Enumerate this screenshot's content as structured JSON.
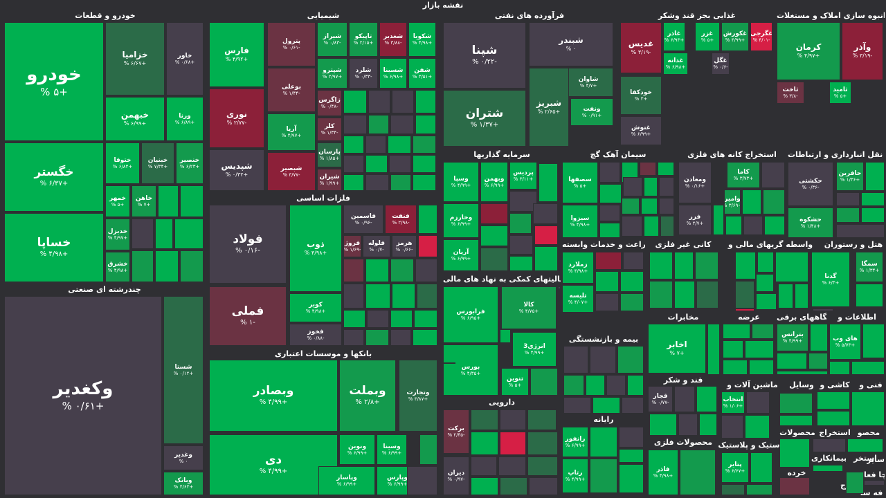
{
  "title": "نقشه بازار",
  "colors": {
    "background": "#2f2f33",
    "strong_green": "#00b050",
    "green": "#139a4d",
    "light_green": "#2b6b48",
    "neutral": "#463f4c",
    "light_red": "#6b3343",
    "red": "#8c2039",
    "strong_red": "#d61f45"
  },
  "sectors": [
    "خودرو و قطعات",
    "شیمیایی",
    "فرآورده های نفتی",
    "غذایی بجز قند وشکر",
    "انبوه سازی املاک و مستغلات",
    "چندرشته ای صنعتی",
    "فلزات اساسی",
    "بانکها و موسسات اعتباری",
    "سرمایه گذاریها",
    "سیمان آهک گچ",
    "استخراج کانه های فلزی",
    "حمل و نقل انبارداری و ارتباطات",
    "زراعت و خدمات وابسته",
    "کانی غیر فلزی",
    "واسطه گریهای مالی و",
    "هتل و رستوران",
    "فعالیتهای کمکی به نهاد های مالی",
    "مخابرات",
    "عرضه",
    "دستگاههای برقی",
    "اطلاعات و",
    "بیمه و بازنشستگی",
    "قند و شکر",
    "ماشین آلات و",
    "وسایل",
    "کاشی و",
    "فنی و",
    "دارویی",
    "رایانه",
    "محصولات فلزی",
    "لاستیک و پلاستیک",
    "محصولات",
    "استخراج",
    "محصو",
    "بیمانکاری",
    "استخر",
    "سایر",
    "چا فعا",
    "منسوج",
    "خرده",
    "فه سا"
  ],
  "tiles": [
    {
      "name": "خودرو",
      "change": "+۵ %"
    },
    {
      "name": "خگستر",
      "change": "+۶/۳۷ %"
    },
    {
      "name": "خساپا",
      "change": "+۴/۹۸ %"
    },
    {
      "name": "خزامیا",
      "change": "+۶/۶۷ %"
    },
    {
      "name": "خاور",
      "change": "+۰/۶۸ %"
    },
    {
      "name": "خبهمن",
      "change": "+۶/۹۹ %"
    },
    {
      "name": "ورنا",
      "change": "+۶/۸۹ %"
    },
    {
      "name": "ختوقا",
      "change": "+۶/۸۴ %"
    },
    {
      "name": "خبنیان",
      "change": "+۷/۳۴ %"
    },
    {
      "name": "خنصیر",
      "change": "+۶/۲۳ %"
    },
    {
      "name": "خمهر",
      "change": "+۵ %"
    },
    {
      "name": "خاهن",
      "change": "+۷ %"
    },
    {
      "name": "خدیزل",
      "change": "+۴/۹۷ %"
    },
    {
      "name": "خشرق",
      "change": "+۴/۹۸ %"
    },
    {
      "name": "وکغدیر",
      "change": "+۰/۶۱ %"
    },
    {
      "name": "شستا",
      "change": "+۰/۱۲ %"
    },
    {
      "name": "وغدیر",
      "change": "۰ %"
    },
    {
      "name": "وبانک",
      "change": "+۴/۶۳ %"
    },
    {
      "name": "فارس",
      "change": "+۴/۹۲ %"
    },
    {
      "name": "نوری",
      "change": "-۲/۷۷ %"
    },
    {
      "name": "شپدیس",
      "change": "+۰/۳۲ %"
    },
    {
      "name": "پترول",
      "change": "-۰/۶۱ %"
    },
    {
      "name": "شیراز",
      "change": "-۰/۸۳ %"
    },
    {
      "name": "تاپیکو",
      "change": "+۲/۱۵ %"
    },
    {
      "name": "شغدیر",
      "change": "-۳/۸۸ %"
    },
    {
      "name": "شکویا",
      "change": "+۴/۹۸ %"
    },
    {
      "name": "بوعلی",
      "change": "-۱/۴۴ %"
    },
    {
      "name": "شپترو",
      "change": "+۲/۹۷ %"
    },
    {
      "name": "شلرد",
      "change": "-۰/۳۳ %"
    },
    {
      "name": "شسینا",
      "change": "+۶/۹۸ %"
    },
    {
      "name": "شفن",
      "change": "+۳/۵۱ %"
    },
    {
      "name": "زاگرس",
      "change": "-۰/۴۸ %"
    },
    {
      "name": "آریا",
      "change": "+۴/۹۷ %"
    },
    {
      "name": "کلر",
      "change": "-۱/۳۴ %"
    },
    {
      "name": "شبصیر",
      "change": "-۳/۷۷ %"
    },
    {
      "name": "پارسان",
      "change": "+۱/۸۵ %"
    },
    {
      "name": "شیران",
      "change": "+۱/۹۹ %"
    },
    {
      "name": "فولاد",
      "change": "-۰/۱۶ %"
    },
    {
      "name": "فملی",
      "change": "-۱ %"
    },
    {
      "name": "ذوب",
      "change": "+۴/۹۸ %"
    },
    {
      "name": "فاسمین",
      "change": "-۰/۹۶ %"
    },
    {
      "name": "فنفت",
      "change": "-۲/۹۸ %"
    },
    {
      "name": "فروژ",
      "change": "-۱/۶۹ %"
    },
    {
      "name": "فلوله",
      "change": "-۰/۷ %"
    },
    {
      "name": "هرمز",
      "change": "-۰/۶۶ %"
    },
    {
      "name": "کویر",
      "change": "+۴/۹۸ %"
    },
    {
      "name": "فخوز",
      "change": "-۰/۸۸ %"
    },
    {
      "name": "وبصادر",
      "change": "+۴/۹۹ %"
    },
    {
      "name": "وبملت",
      "change": "+۲/۸ %"
    },
    {
      "name": "وتجارت",
      "change": "+۳/۸۷ %"
    },
    {
      "name": "دی",
      "change": "+۴/۹۹ %"
    },
    {
      "name": "ونوین",
      "change": "+۶/۹۹ %"
    },
    {
      "name": "وسینا",
      "change": "+۶/۹۹ %"
    },
    {
      "name": "وپاسار",
      "change": "+۶/۹۹ %"
    },
    {
      "name": "وپارس",
      "change": "+۶/۹۹ %"
    },
    {
      "name": "شپنا",
      "change": "-۰/۲۲ %"
    },
    {
      "name": "شبندر",
      "change": "۰ %"
    },
    {
      "name": "شاوان",
      "change": "+۴/۷ %"
    },
    {
      "name": "شتران",
      "change": "+۱/۳۷ %"
    },
    {
      "name": "شبریز",
      "change": "+۲/۶۵ %"
    },
    {
      "name": "ونفت",
      "change": "+۰/۹۱ %"
    },
    {
      "name": "غدیس",
      "change": "-۳/۱۹ %"
    },
    {
      "name": "غاذر",
      "change": "+۶/۹۳ %"
    },
    {
      "name": "غزر",
      "change": "+۵ %"
    },
    {
      "name": "غکورش",
      "change": "+۴/۹۹ %"
    },
    {
      "name": "غگرجی",
      "change": "-۴/۰۱ %"
    },
    {
      "name": "غدانه",
      "change": "+۶/۹۸ %"
    },
    {
      "name": "غگل",
      "change": "-۰/۶ %"
    },
    {
      "name": "خودکفا",
      "change": "+۳ %"
    },
    {
      "name": "غنوش",
      "change": "+۶/۹۹ %"
    },
    {
      "name": "کرمان",
      "change": "+۴/۹۷ %"
    },
    {
      "name": "وآذر",
      "change": "-۳/۱۹ %"
    },
    {
      "name": "ثاخت",
      "change": "-۳/۸ %"
    },
    {
      "name": "ثامید",
      "change": "+۵ %"
    },
    {
      "name": "وسپا",
      "change": "+۴/۹۹ %"
    },
    {
      "name": "وبهمن",
      "change": "+۶/۹۹ %"
    },
    {
      "name": "پردیس",
      "change": "+۳/۱۱ %"
    },
    {
      "name": "وخارزم",
      "change": "+۶/۹۹ %"
    },
    {
      "name": "آریان",
      "change": "+۶/۹۹ %"
    },
    {
      "name": "سصفها",
      "change": "+۵ %"
    },
    {
      "name": "سیزوا",
      "change": "+۴/۹۸ %"
    },
    {
      "name": "ومعادن",
      "change": "+۰/۱۶ %"
    },
    {
      "name": "کاما",
      "change": "+۳/۷۳ %"
    },
    {
      "name": "وامیر",
      "change": "+۳/۶۹ %"
    },
    {
      "name": "فزر",
      "change": "+۲/۷ %"
    },
    {
      "name": "حکشتی",
      "change": "-۰/۳۶ %"
    },
    {
      "name": "حافرین",
      "change": "+۱/۳۶ %"
    },
    {
      "name": "حشکوه",
      "change": "+۱/۴۸ %"
    },
    {
      "name": "زملارد",
      "change": "+۴/۹۸ %"
    },
    {
      "name": "تلیسه",
      "change": "+۴/۰۷ %"
    },
    {
      "name": "سمگا",
      "change": "+۱/۳۴ %"
    },
    {
      "name": "گدنا",
      "change": "+۶/۳ %"
    },
    {
      "name": "فرابورس",
      "change": "+۶/۹۵ %"
    },
    {
      "name": "کالا",
      "change": "+۴/۷۵ %"
    },
    {
      "name": "انرژی3",
      "change": "+۴/۹۹ %"
    },
    {
      "name": "بورس",
      "change": "+۴/۳۵ %"
    },
    {
      "name": "تنوین",
      "change": "+۵ %"
    },
    {
      "name": "اخابر",
      "change": "+۷ %"
    },
    {
      "name": "بترانس",
      "change": "+۴/۹۹ %"
    },
    {
      "name": "های وب",
      "change": "+۵/۷۳ %"
    },
    {
      "name": "قجار",
      "change": "-۰/۷۷ %"
    },
    {
      "name": "انتخاب",
      "change": "+۱/۰۶ %"
    },
    {
      "name": "برکت",
      "change": "-۲/۴۵ %"
    },
    {
      "name": "دیران",
      "change": "-۰/۹۷ %"
    },
    {
      "name": "رانفور",
      "change": "+۶/۹۹ %"
    },
    {
      "name": "رتاپ",
      "change": "+۴/۹۹ %"
    },
    {
      "name": "فاذر",
      "change": "+۴/۹۸ %"
    },
    {
      "name": "پتایر",
      "change": "+۶/۶۷ %"
    }
  ]
}
